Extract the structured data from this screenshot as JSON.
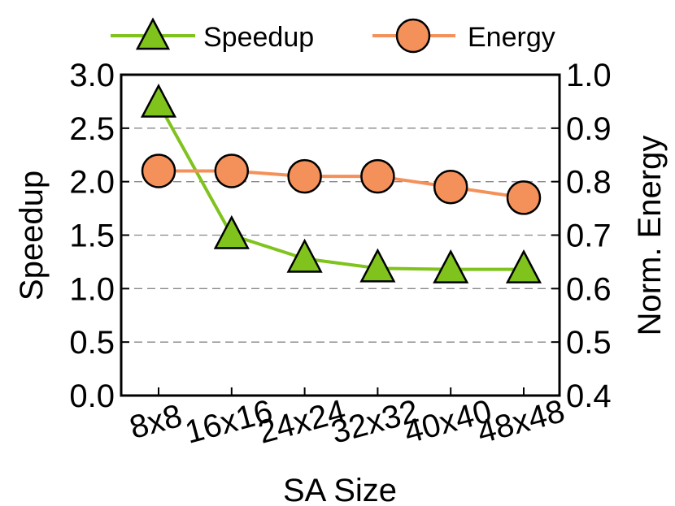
{
  "chart_data": {
    "type": "line",
    "categories": [
      "8x8",
      "16x16",
      "24x24",
      "32x32",
      "40x40",
      "48x48"
    ],
    "xlabel": "SA Size",
    "ylabel": "Speedup",
    "y2label": "Norm. Energy",
    "ylim": [
      0.0,
      3.0
    ],
    "y2lim": [
      0.4,
      1.0
    ],
    "yticks": [
      "0.0",
      "0.5",
      "1.0",
      "1.5",
      "2.0",
      "2.5",
      "3.0"
    ],
    "y2ticks": [
      "0.4",
      "0.5",
      "0.6",
      "0.7",
      "0.8",
      "0.9",
      "1.0"
    ],
    "grid": "horizontal-dashed",
    "legend_position": "top",
    "series": [
      {
        "name": "Speedup",
        "axis": "left",
        "marker": "triangle",
        "color": "#7fc31c",
        "values": [
          2.73,
          1.5,
          1.28,
          1.19,
          1.18,
          1.18
        ]
      },
      {
        "name": "Energy",
        "axis": "right",
        "marker": "circle",
        "color": "#f4915a",
        "values": [
          0.82,
          0.82,
          0.81,
          0.81,
          0.79,
          0.77
        ]
      }
    ]
  }
}
